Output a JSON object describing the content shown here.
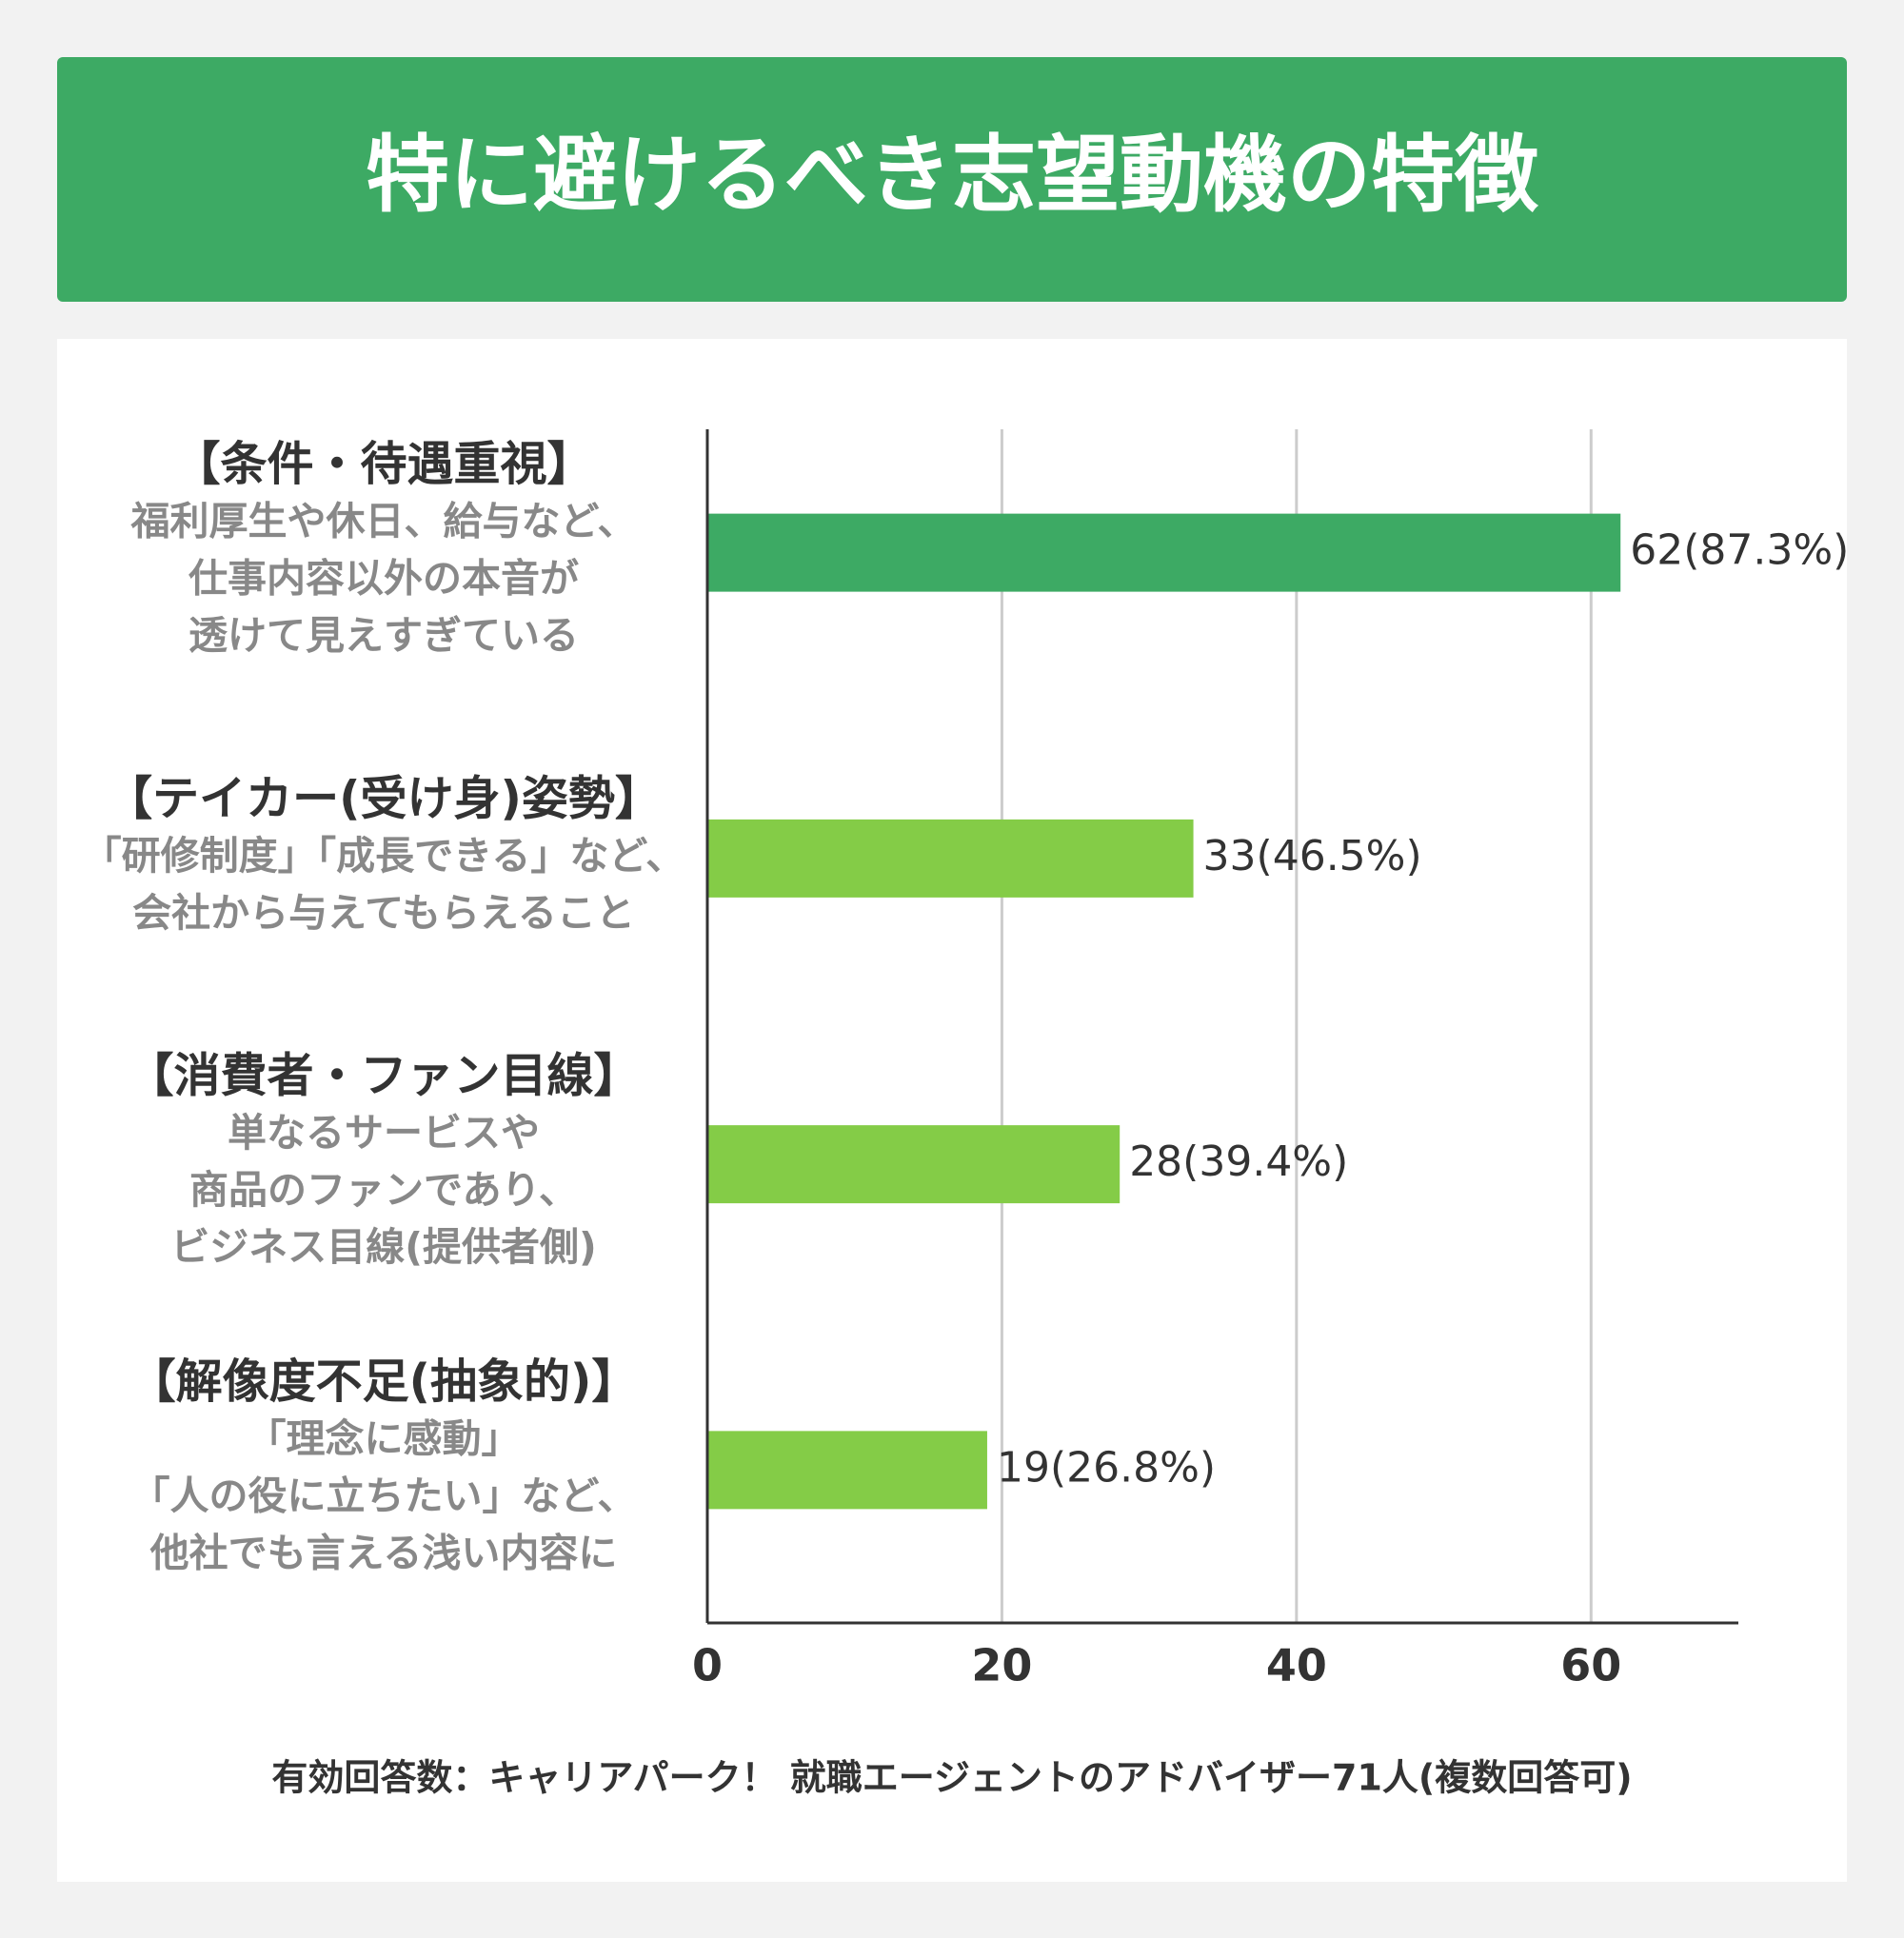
{
  "chart_data": {
    "type": "bar",
    "orientation": "horizontal",
    "title": "特に避けるべき志望動機の特徴",
    "categories": [
      "【条件・待遇重視】",
      "【テイカー(受け身)姿勢】",
      "【消費者・ファン目線】",
      "【解像度不足(抽象的)】"
    ],
    "descriptions": [
      [
        "福利厚生や休日、給与など、",
        "仕事内容以外の本音が",
        "透けて見えすぎている"
      ],
      [
        "「研修制度」「成長できる」など、",
        "会社から与えてもらえること"
      ],
      [
        "単なるサービスや",
        "商品のファンであり、",
        "ビジネス目線(提供者側)"
      ],
      [
        "「理念に感動」",
        "「人の役に立ちたい」など、",
        "他社でも言える浅い内容に"
      ]
    ],
    "values": [
      62,
      33,
      28,
      19
    ],
    "value_labels": [
      "62(87.3%)",
      "33(46.5%)",
      "28(39.4%)",
      "19(26.8%)"
    ],
    "colors": [
      "#3daa64",
      "#84cc47",
      "#84cc47",
      "#84cc47"
    ],
    "xlim": [
      0,
      70
    ],
    "xticks": [
      0,
      20,
      40,
      60
    ],
    "grid": true,
    "note": "有効回答数：キャリアパーク！ 就職エージェントのアドバイザー71人(複数回答可)"
  }
}
